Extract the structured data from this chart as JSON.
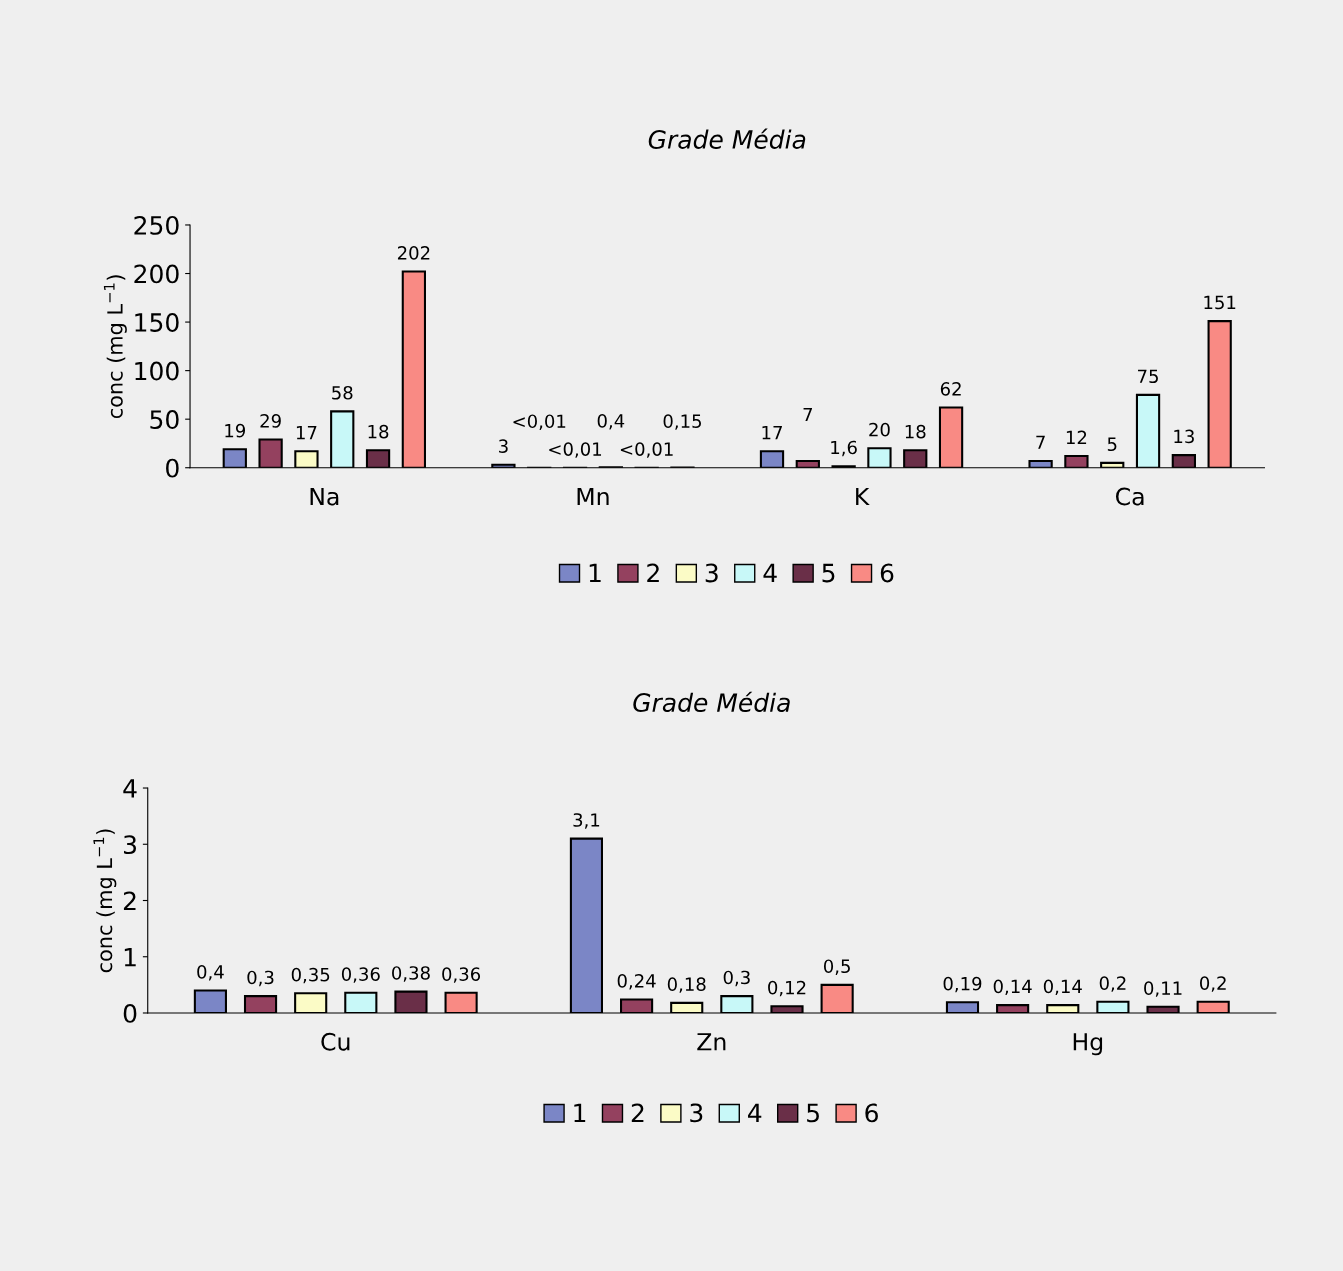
{
  "chart_data": [
    {
      "type": "bar",
      "title": "Grade Média",
      "ylabel": "conc (mg L$^{−1}$)",
      "categories": [
        "Na",
        "Mn",
        "K",
        "Ca"
      ],
      "ylim": [
        0,
        250
      ],
      "yticks": [
        0,
        50,
        100,
        150,
        200,
        250
      ],
      "legend": "bottom",
      "grid": false,
      "series": [
        {
          "name": "1",
          "color": "#7b86c6",
          "values": [
            19,
            3,
            17,
            7
          ],
          "value_labels": [
            "19",
            "3",
            "17",
            "7"
          ]
        },
        {
          "name": "2",
          "color": "#94415f",
          "values": [
            29,
            0.01,
            7,
            12
          ],
          "value_labels": [
            "29",
            "<0,01",
            "7",
            "12"
          ]
        },
        {
          "name": "3",
          "color": "#fbfbc6",
          "values": [
            17,
            0.01,
            1.6,
            5
          ],
          "value_labels": [
            "17",
            "<0,01",
            "1,6",
            "5"
          ]
        },
        {
          "name": "4",
          "color": "#c8f8f8",
          "values": [
            58,
            0.4,
            20,
            75
          ],
          "value_labels": [
            "58",
            "0,4",
            "20",
            "75"
          ]
        },
        {
          "name": "5",
          "color": "#6a2f48",
          "values": [
            18,
            0.01,
            18,
            13
          ],
          "value_labels": [
            "18",
            "<0,01",
            "18",
            "13"
          ]
        },
        {
          "name": "6",
          "color": "#f98a84",
          "values": [
            202,
            0.15,
            62,
            151
          ],
          "value_labels": [
            "202",
            "0,15",
            "62",
            "151"
          ]
        }
      ]
    },
    {
      "type": "bar",
      "title": "Grade Média",
      "ylabel": "conc (mg L$^{−1}$)",
      "categories": [
        "Cu",
        "Zn",
        "Hg"
      ],
      "ylim": [
        0,
        4
      ],
      "yticks": [
        0,
        1,
        2,
        3,
        4
      ],
      "legend": "bottom",
      "grid": false,
      "series": [
        {
          "name": "1",
          "color": "#7b86c6",
          "values": [
            0.4,
            3.1,
            0.19
          ],
          "value_labels": [
            "0,4",
            "3,1",
            "0,19"
          ]
        },
        {
          "name": "2",
          "color": "#94415f",
          "values": [
            0.3,
            0.24,
            0.14
          ],
          "value_labels": [
            "0,3",
            "0,24",
            "0,14"
          ]
        },
        {
          "name": "3",
          "color": "#fbfbc6",
          "values": [
            0.35,
            0.18,
            0.14
          ],
          "value_labels": [
            "0,35",
            "0,18",
            "0,14"
          ]
        },
        {
          "name": "4",
          "color": "#c8f8f8",
          "values": [
            0.36,
            0.3,
            0.2
          ],
          "value_labels": [
            "0,36",
            "0,3",
            "0,2"
          ]
        },
        {
          "name": "5",
          "color": "#6a2f48",
          "values": [
            0.38,
            0.12,
            0.11
          ],
          "value_labels": [
            "0,38",
            "0,12",
            "0,11"
          ]
        },
        {
          "name": "6",
          "color": "#f98a84",
          "values": [
            0.36,
            0.5,
            0.2
          ],
          "value_labels": [
            "0,36",
            "0,5",
            "0,2"
          ]
        }
      ]
    }
  ]
}
